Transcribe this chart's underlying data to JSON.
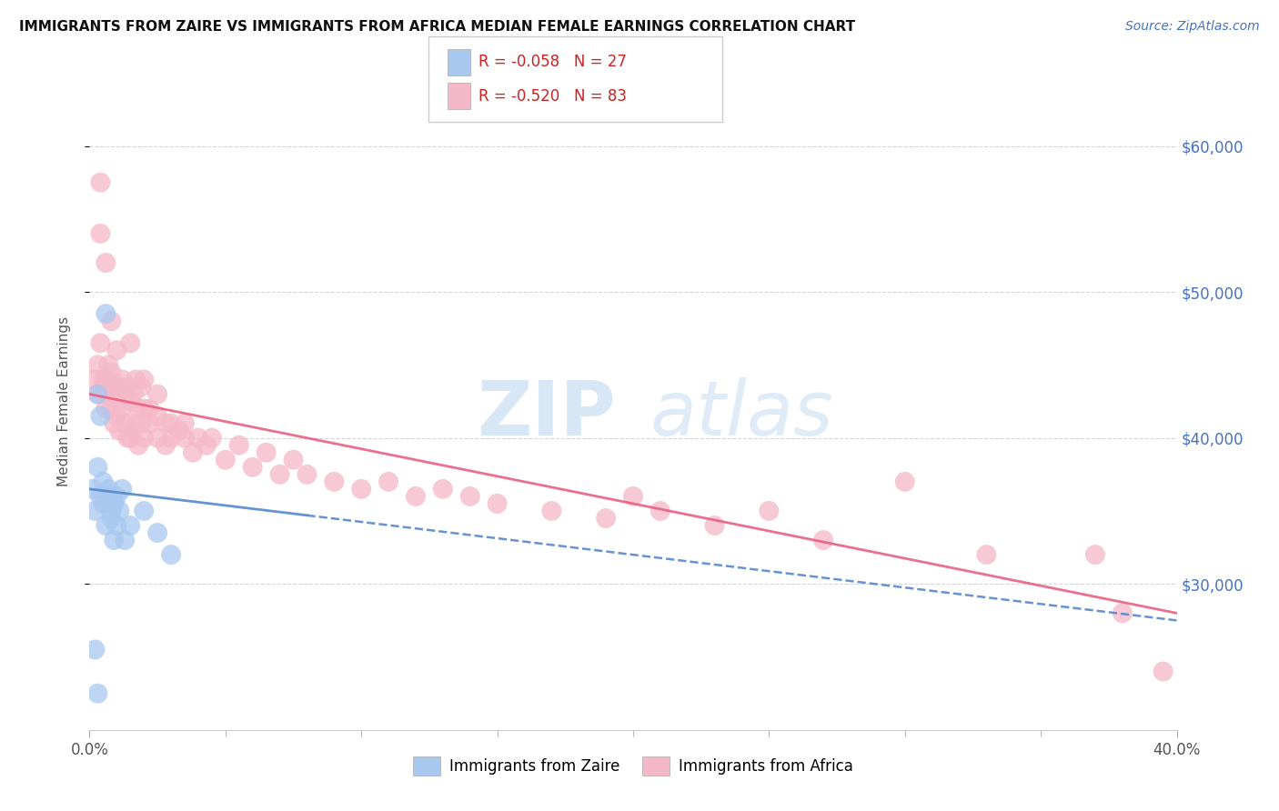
{
  "title": "IMMIGRANTS FROM ZAIRE VS IMMIGRANTS FROM AFRICA MEDIAN FEMALE EARNINGS CORRELATION CHART",
  "source": "Source: ZipAtlas.com",
  "ylabel": "Median Female Earnings",
  "ytick_labels": [
    "$30,000",
    "$40,000",
    "$50,000",
    "$60,000"
  ],
  "ytick_values": [
    30000,
    40000,
    50000,
    60000
  ],
  "xlim": [
    0.0,
    0.4
  ],
  "ylim": [
    20000,
    65000
  ],
  "legend_zaire_r": "R = -0.058",
  "legend_zaire_n": "N = 27",
  "legend_africa_r": "R = -0.520",
  "legend_africa_n": "N = 83",
  "zaire_color": "#a8c8f0",
  "africa_color": "#f5b8c8",
  "zaire_line_color": "#5588cc",
  "africa_line_color": "#e86080",
  "watermark_zip": "ZIP",
  "watermark_atlas": "atlas",
  "zaire_points": [
    [
      0.001,
      36500
    ],
    [
      0.002,
      35000
    ],
    [
      0.003,
      38000
    ],
    [
      0.003,
      43000
    ],
    [
      0.004,
      36000
    ],
    [
      0.004,
      41500
    ],
    [
      0.005,
      35500
    ],
    [
      0.005,
      37000
    ],
    [
      0.006,
      34000
    ],
    [
      0.006,
      48500
    ],
    [
      0.007,
      36000
    ],
    [
      0.007,
      36500
    ],
    [
      0.008,
      35000
    ],
    [
      0.008,
      34500
    ],
    [
      0.009,
      33000
    ],
    [
      0.009,
      35500
    ],
    [
      0.01,
      36000
    ],
    [
      0.01,
      34000
    ],
    [
      0.011,
      35000
    ],
    [
      0.012,
      36500
    ],
    [
      0.013,
      33000
    ],
    [
      0.015,
      34000
    ],
    [
      0.02,
      35000
    ],
    [
      0.025,
      33500
    ],
    [
      0.03,
      32000
    ],
    [
      0.002,
      25500
    ],
    [
      0.003,
      22500
    ]
  ],
  "africa_points": [
    [
      0.002,
      44000
    ],
    [
      0.003,
      45000
    ],
    [
      0.003,
      43000
    ],
    [
      0.004,
      46500
    ],
    [
      0.004,
      54000
    ],
    [
      0.005,
      44000
    ],
    [
      0.005,
      43500
    ],
    [
      0.006,
      44000
    ],
    [
      0.006,
      42000
    ],
    [
      0.007,
      45000
    ],
    [
      0.007,
      43000
    ],
    [
      0.008,
      44500
    ],
    [
      0.008,
      42000
    ],
    [
      0.009,
      43500
    ],
    [
      0.009,
      41000
    ],
    [
      0.01,
      43000
    ],
    [
      0.01,
      41500
    ],
    [
      0.011,
      43500
    ],
    [
      0.011,
      40500
    ],
    [
      0.012,
      44000
    ],
    [
      0.012,
      42000
    ],
    [
      0.013,
      43000
    ],
    [
      0.013,
      41000
    ],
    [
      0.014,
      43500
    ],
    [
      0.014,
      40000
    ],
    [
      0.015,
      42500
    ],
    [
      0.015,
      40000
    ],
    [
      0.016,
      43000
    ],
    [
      0.016,
      40500
    ],
    [
      0.017,
      44000
    ],
    [
      0.017,
      41000
    ],
    [
      0.018,
      42000
    ],
    [
      0.018,
      39500
    ],
    [
      0.019,
      43500
    ],
    [
      0.019,
      41000
    ],
    [
      0.02,
      42000
    ],
    [
      0.02,
      40000
    ],
    [
      0.022,
      42000
    ],
    [
      0.022,
      41000
    ],
    [
      0.025,
      41500
    ],
    [
      0.025,
      40000
    ],
    [
      0.028,
      41000
    ],
    [
      0.028,
      39500
    ],
    [
      0.03,
      41000
    ],
    [
      0.03,
      40000
    ],
    [
      0.033,
      40500
    ],
    [
      0.035,
      40000
    ],
    [
      0.038,
      39000
    ],
    [
      0.04,
      40000
    ],
    [
      0.043,
      39500
    ],
    [
      0.045,
      40000
    ],
    [
      0.05,
      38500
    ],
    [
      0.055,
      39500
    ],
    [
      0.06,
      38000
    ],
    [
      0.065,
      39000
    ],
    [
      0.07,
      37500
    ],
    [
      0.075,
      38500
    ],
    [
      0.08,
      37500
    ],
    [
      0.09,
      37000
    ],
    [
      0.1,
      36500
    ],
    [
      0.11,
      37000
    ],
    [
      0.12,
      36000
    ],
    [
      0.13,
      36500
    ],
    [
      0.14,
      36000
    ],
    [
      0.15,
      35500
    ],
    [
      0.17,
      35000
    ],
    [
      0.19,
      34500
    ],
    [
      0.2,
      36000
    ],
    [
      0.21,
      35000
    ],
    [
      0.23,
      34000
    ],
    [
      0.25,
      35000
    ],
    [
      0.27,
      33000
    ],
    [
      0.004,
      57500
    ],
    [
      0.006,
      52000
    ],
    [
      0.008,
      48000
    ],
    [
      0.01,
      46000
    ],
    [
      0.015,
      46500
    ],
    [
      0.02,
      44000
    ],
    [
      0.025,
      43000
    ],
    [
      0.035,
      41000
    ],
    [
      0.3,
      37000
    ],
    [
      0.33,
      32000
    ],
    [
      0.37,
      32000
    ],
    [
      0.38,
      28000
    ],
    [
      0.395,
      24000
    ]
  ]
}
